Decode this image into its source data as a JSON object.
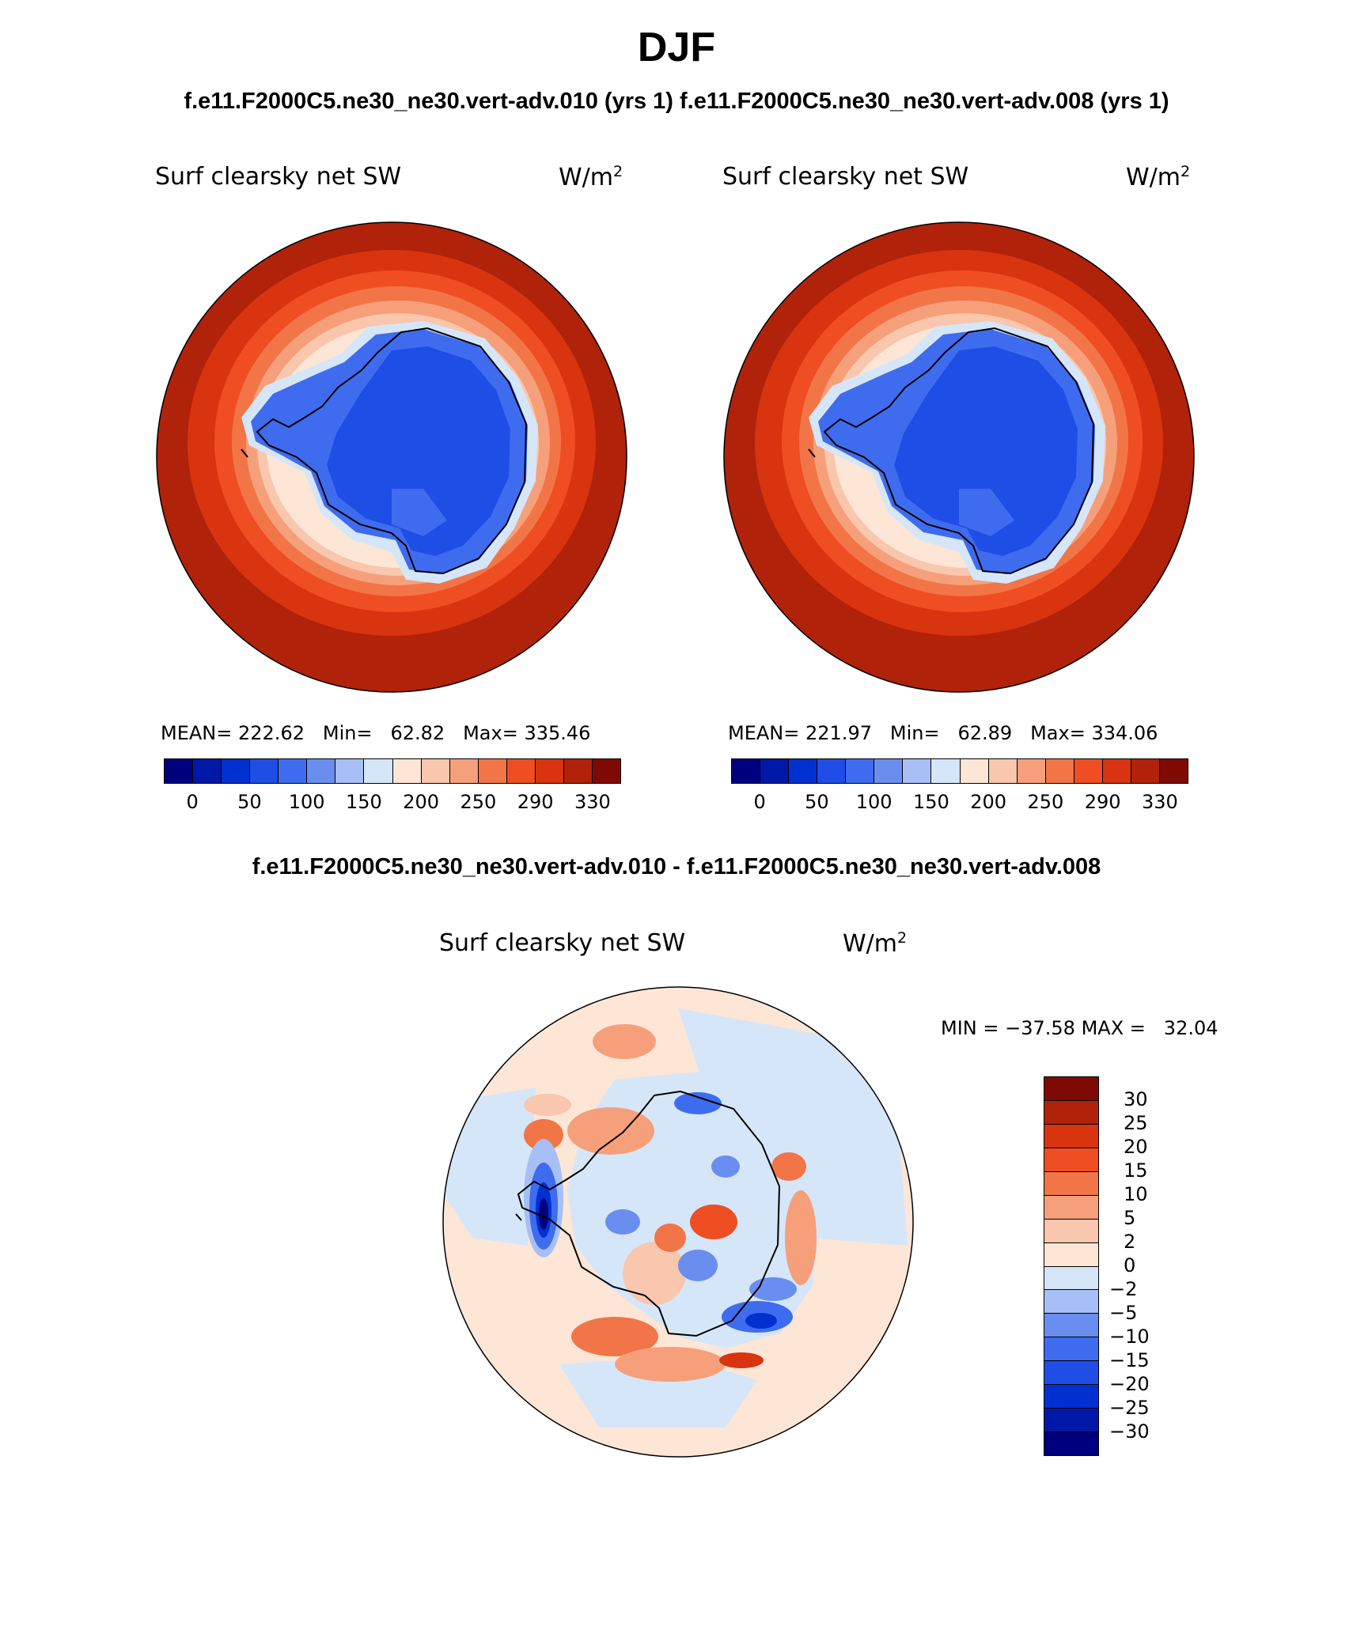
{
  "figure": {
    "title": "DJF",
    "subtitle": "f.e11.F2000C5.ne30_ne30.vert-adv.010 (yrs 1) f.e11.F2000C5.ne30_ne30.vert-adv.008 (yrs 1)",
    "diff_title": "f.e11.F2000C5.ne30_ne30.vert-adv.010 - f.e11.F2000C5.ne30_ne30.vert-adv.008"
  },
  "panels": [
    {
      "variable": "Surf clearsky net SW",
      "units": "W/m",
      "units_sup": "2",
      "mean_label": "MEAN=",
      "mean": "222.62",
      "min_label": "Min=",
      "min": "62.82",
      "max_label": "Max=",
      "max": "335.46"
    },
    {
      "variable": "Surf clearsky net SW",
      "units": "W/m",
      "units_sup": "2",
      "mean_label": "MEAN=",
      "mean": "221.97",
      "min_label": "Min=",
      "min": "62.89",
      "max_label": "Max=",
      "max": "334.06"
    }
  ],
  "main_colorbar": {
    "colors": [
      "#00007f",
      "#0018a8",
      "#0030d0",
      "#1f4ee6",
      "#3f6cee",
      "#6a8ef0",
      "#a7bff5",
      "#d6e6f9",
      "#fde6d6",
      "#f9c7ad",
      "#f6a07b",
      "#f27548",
      "#ef4e22",
      "#d8340f",
      "#b0220a",
      "#7f0a03"
    ],
    "ticks": [
      "0",
      "50",
      "100",
      "150",
      "200",
      "250",
      "290",
      "330"
    ]
  },
  "diff_panel": {
    "variable": "Surf clearsky net SW",
    "units": "W/m",
    "units_sup": "2",
    "min_label": "MIN =",
    "min": "−37.58",
    "max_label": "MAX =",
    "max": "32.04",
    "colorbar": {
      "colors": [
        "#7f0a03",
        "#b0220a",
        "#d8340f",
        "#ef4e22",
        "#f27548",
        "#f6a07b",
        "#f9c7ad",
        "#fde6d6",
        "#d6e6f9",
        "#a7bff5",
        "#6a8ef0",
        "#3f6cee",
        "#1f4ee6",
        "#0030d0",
        "#0018a8",
        "#00007f"
      ],
      "ticks": [
        "30",
        "25",
        "20",
        "15",
        "10",
        "5",
        "2",
        "0",
        "−2",
        "−5",
        "−10",
        "−15",
        "−20",
        "−25",
        "−30"
      ]
    }
  }
}
